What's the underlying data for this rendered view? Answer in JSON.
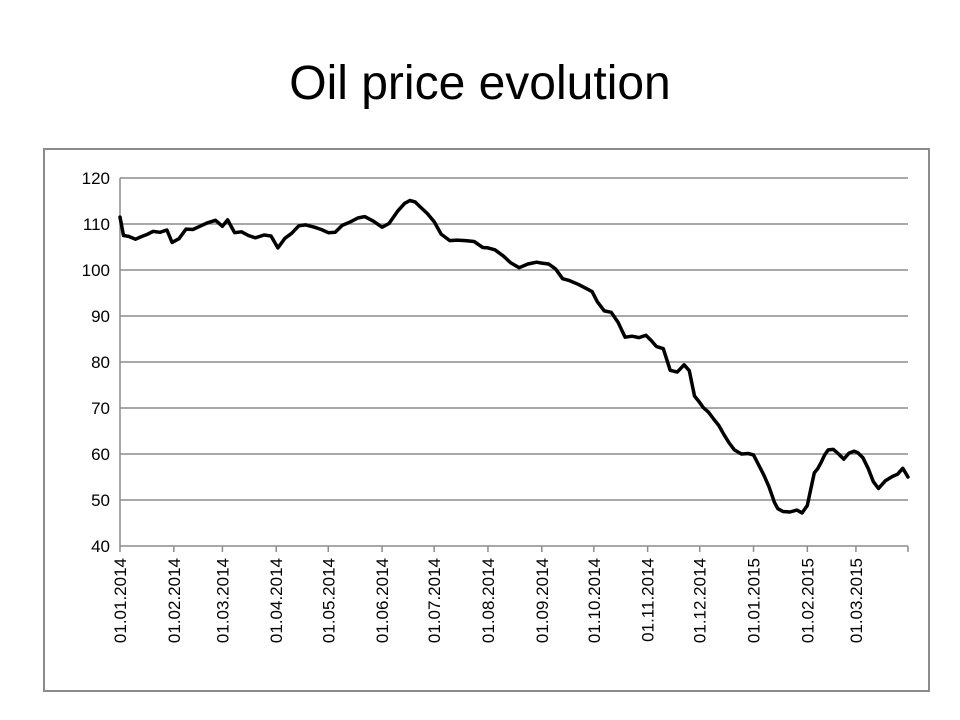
{
  "title": "Oil price evolution",
  "chart_data": {
    "type": "line",
    "title": "Oil price evolution",
    "xlabel": "",
    "ylabel": "",
    "ylim": [
      40,
      120
    ],
    "yticks": [
      40,
      50,
      60,
      70,
      80,
      90,
      100,
      110,
      120
    ],
    "xlim": [
      "2014-01-01",
      "2015-03-31"
    ],
    "xtick_labels": [
      "01.01.2014",
      "01.02.2014",
      "01.03.2014",
      "01.04.2014",
      "01.05.2014",
      "01.06.2014",
      "01.07.2014",
      "01.08.2014",
      "01.09.2014",
      "01.10.2014",
      "01.11.2014",
      "01.12.2014",
      "01.01.2015",
      "01.02.2015",
      "01.03.2015"
    ],
    "xtick_dates": [
      "2014-01-01",
      "2014-02-01",
      "2014-03-01",
      "2014-04-01",
      "2014-05-01",
      "2014-06-01",
      "2014-07-01",
      "2014-08-01",
      "2014-09-01",
      "2014-10-01",
      "2014-11-01",
      "2014-12-01",
      "2015-01-01",
      "2015-02-01",
      "2015-03-01"
    ],
    "grid": true,
    "legend": "none",
    "line_color": "#000000",
    "grid_color": "#8c8c8c",
    "series": [
      {
        "x": [
          "2014-01-01",
          "2014-01-03",
          "2014-01-06",
          "2014-01-10",
          "2014-01-13",
          "2014-01-17",
          "2014-01-20",
          "2014-01-24",
          "2014-01-28",
          "2014-01-31",
          "2014-02-04",
          "2014-02-08",
          "2014-02-12",
          "2014-02-16",
          "2014-02-20",
          "2014-02-25",
          "2014-03-01",
          "2014-03-04",
          "2014-03-08",
          "2014-03-12",
          "2014-03-16",
          "2014-03-20",
          "2014-03-25",
          "2014-03-29",
          "2014-04-02",
          "2014-04-06",
          "2014-04-10",
          "2014-04-14",
          "2014-04-18",
          "2014-04-23",
          "2014-04-27",
          "2014-05-01",
          "2014-05-05",
          "2014-05-09",
          "2014-05-14",
          "2014-05-18",
          "2014-05-22",
          "2014-05-27",
          "2014-06-01",
          "2014-06-05",
          "2014-06-10",
          "2014-06-14",
          "2014-06-17",
          "2014-06-20",
          "2014-06-23",
          "2014-06-27",
          "2014-07-01",
          "2014-07-05",
          "2014-07-10",
          "2014-07-14",
          "2014-07-19",
          "2014-07-24",
          "2014-07-29",
          "2014-08-01",
          "2014-08-05",
          "2014-08-10",
          "2014-08-14",
          "2014-08-19",
          "2014-08-24",
          "2014-08-29",
          "2014-09-01",
          "2014-09-05",
          "2014-09-09",
          "2014-09-13",
          "2014-09-17",
          "2014-09-22",
          "2014-09-26",
          "2014-09-30",
          "2014-10-03",
          "2014-10-07",
          "2014-10-11",
          "2014-10-15",
          "2014-10-19",
          "2014-10-23",
          "2014-10-27",
          "2014-10-31",
          "2014-11-03",
          "2014-11-06",
          "2014-11-10",
          "2014-11-14",
          "2014-11-18",
          "2014-11-22",
          "2014-11-25",
          "2014-11-28",
          "2014-12-01",
          "2014-12-03",
          "2014-12-06",
          "2014-12-09",
          "2014-12-12",
          "2014-12-15",
          "2014-12-18",
          "2014-12-21",
          "2014-12-25",
          "2014-12-29",
          "2015-01-01",
          "2015-01-04",
          "2015-01-07",
          "2015-01-10",
          "2015-01-13",
          "2015-01-15",
          "2015-01-18",
          "2015-01-22",
          "2015-01-26",
          "2015-01-29",
          "2015-02-01",
          "2015-02-03",
          "2015-02-05",
          "2015-02-07",
          "2015-02-09",
          "2015-02-11",
          "2015-02-13",
          "2015-02-16",
          "2015-02-19",
          "2015-02-22",
          "2015-02-25",
          "2015-02-28",
          "2015-03-02",
          "2015-03-05",
          "2015-03-08",
          "2015-03-11",
          "2015-03-14",
          "2015-03-18",
          "2015-03-22",
          "2015-03-25",
          "2015-03-28",
          "2015-03-31"
        ],
        "values": [
          111.5,
          107.5,
          107.3,
          106.7,
          107.2,
          107.8,
          108.4,
          108.2,
          108.7,
          106.0,
          106.8,
          108.9,
          108.8,
          109.5,
          110.2,
          110.8,
          109.5,
          110.9,
          108.1,
          108.3,
          107.5,
          107.0,
          107.6,
          107.4,
          104.8,
          106.9,
          108.0,
          109.6,
          109.8,
          109.3,
          108.8,
          108.1,
          108.2,
          109.7,
          110.5,
          111.3,
          111.6,
          110.6,
          109.3,
          110.1,
          112.8,
          114.5,
          115.1,
          114.8,
          113.7,
          112.3,
          110.5,
          107.8,
          106.4,
          106.5,
          106.4,
          106.2,
          104.9,
          104.8,
          104.4,
          103.0,
          101.6,
          100.5,
          101.3,
          101.7,
          101.5,
          101.3,
          100.2,
          98.1,
          97.7,
          96.9,
          96.1,
          95.3,
          93.1,
          91.1,
          90.8,
          88.6,
          85.4,
          85.6,
          85.3,
          85.8,
          84.7,
          83.4,
          82.9,
          78.2,
          77.8,
          79.4,
          78.1,
          72.6,
          71.2,
          70.1,
          69.1,
          67.6,
          66.2,
          64.2,
          62.4,
          60.9,
          60.0,
          60.1,
          59.8,
          57.6,
          55.4,
          52.8,
          49.5,
          48.1,
          47.5,
          47.4,
          47.8,
          47.2,
          48.8,
          52.4,
          55.9,
          56.8,
          58.2,
          59.8,
          60.9,
          61.0,
          60.0,
          58.9,
          60.2,
          60.6,
          60.3,
          59.2,
          56.9,
          54.0,
          52.5,
          54.2,
          55.1,
          55.6,
          56.9,
          55.0
        ]
      }
    ]
  }
}
